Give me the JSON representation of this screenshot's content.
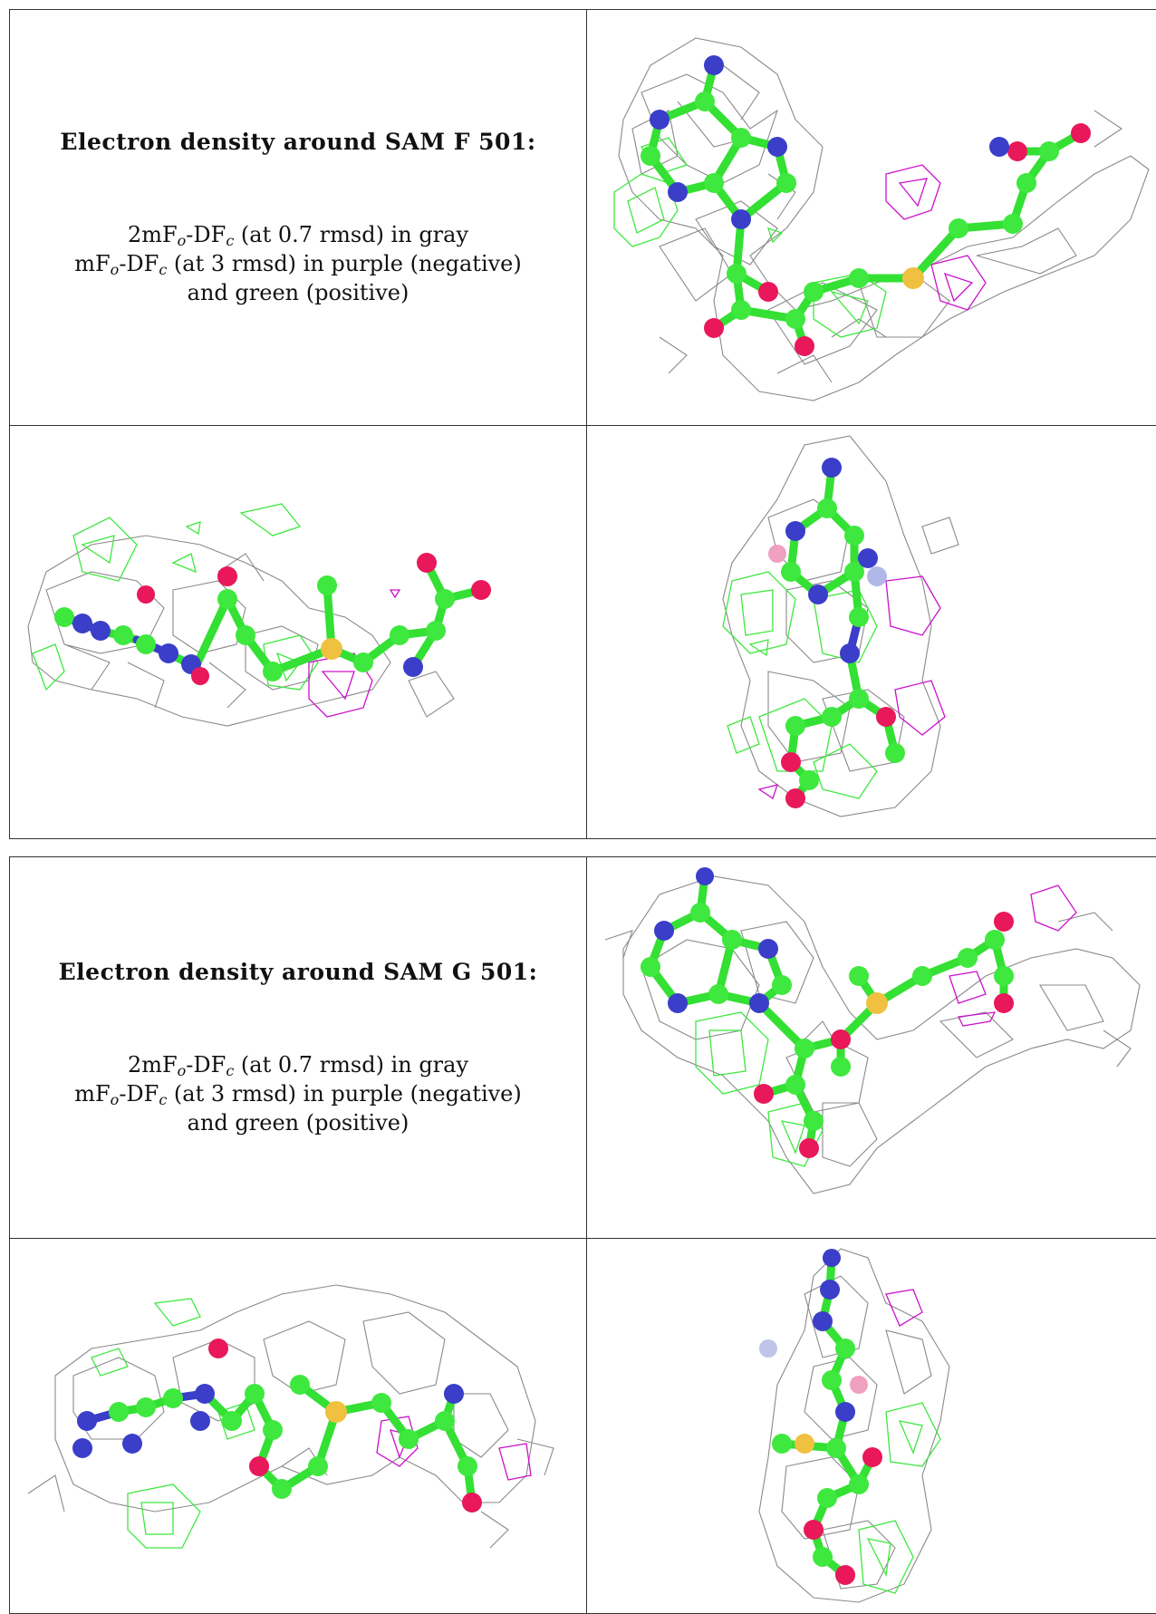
{
  "panels": [
    {
      "title": "Electron density around SAM F 501:",
      "legend": {
        "line1_a": "2mF",
        "line1_sub1": "o",
        "line1_b": "-DF",
        "line1_sub2": "c",
        "line1_c": " (at 0.7 rmsd) in gray",
        "line2_a": "mF",
        "line2_sub1": "o",
        "line2_b": "-DF",
        "line2_sub2": "c",
        "line2_c": " (at 3 rmsd) in purple (negative)",
        "line3": "and green (positive)"
      }
    },
    {
      "title": "Electron density around SAM G 501:",
      "legend": {
        "line1_a": "2mF",
        "line1_sub1": "o",
        "line1_b": "-DF",
        "line1_sub2": "c",
        "line1_c": " (at 0.7 rmsd) in gray",
        "line2_a": "mF",
        "line2_sub1": "o",
        "line2_b": "-DF",
        "line2_sub2": "c",
        "line2_c": " (at 3 rmsd) in purple (negative)",
        "line3": "and green (positive)"
      }
    }
  ],
  "colors": {
    "carbon": "#3ee83e",
    "nitrogen": "#3a3ec8",
    "oxygen": "#e8185a",
    "sulfur": "#f0c040",
    "density_2fofc": "#8a8a8a",
    "density_positive": "#3ee83e",
    "density_negative": "#cc11cc"
  }
}
